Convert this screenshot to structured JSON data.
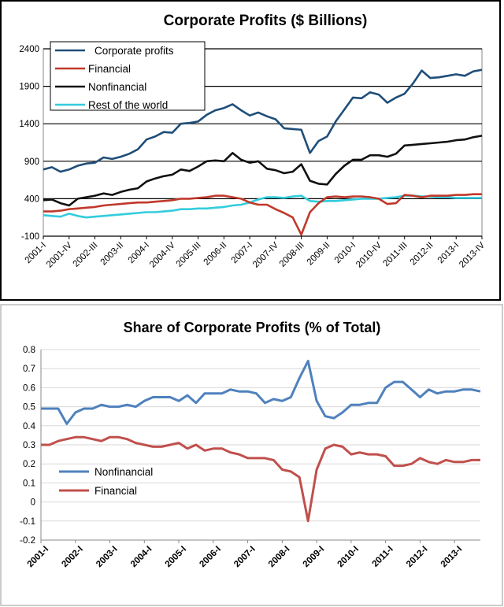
{
  "chart_data": [
    {
      "type": "line",
      "title": "Corporate Profits ($ Billions)",
      "ylim": [
        -100,
        2400
      ],
      "yticks": [
        2400,
        1900,
        1400,
        900,
        400,
        -100
      ],
      "xtick_labels": [
        "2001-I",
        "2001-IV",
        "2002-III",
        "2003-II",
        "2004-I",
        "2004-IV",
        "2005-III",
        "2006-II",
        "2007-I",
        "2007-IV",
        "2008-III",
        "2009-II",
        "2010-I",
        "2010-IV",
        "2011-III",
        "2012-II",
        "2013-I",
        "2013-IV"
      ],
      "legend": "top-left",
      "series": [
        {
          "name": "Corporate profits",
          "color": "#1f4e79",
          "values": [
            790,
            820,
            760,
            790,
            840,
            870,
            880,
            950,
            930,
            960,
            1000,
            1060,
            1190,
            1230,
            1290,
            1280,
            1400,
            1410,
            1430,
            1520,
            1580,
            1610,
            1660,
            1580,
            1510,
            1550,
            1500,
            1460,
            1340,
            1330,
            1320,
            1010,
            1170,
            1230,
            1430,
            1590,
            1750,
            1740,
            1820,
            1790,
            1680,
            1750,
            1800,
            1940,
            2110,
            2010,
            2020,
            2040,
            2060,
            2040,
            2100,
            2120
          ]
        },
        {
          "name": "Financial",
          "color": "#c0392b",
          "values": [
            230,
            230,
            240,
            260,
            270,
            280,
            290,
            310,
            320,
            330,
            340,
            350,
            350,
            360,
            370,
            380,
            400,
            400,
            410,
            420,
            440,
            440,
            420,
            400,
            350,
            320,
            320,
            260,
            210,
            150,
            -80,
            220,
            340,
            420,
            430,
            420,
            430,
            430,
            420,
            400,
            330,
            340,
            450,
            440,
            420,
            440,
            440,
            440,
            450,
            450,
            460,
            460
          ]
        },
        {
          "name": "Nonfinancial",
          "color": "#111111",
          "values": [
            380,
            390,
            340,
            310,
            400,
            420,
            440,
            470,
            450,
            490,
            520,
            540,
            630,
            670,
            700,
            720,
            790,
            770,
            830,
            900,
            910,
            900,
            1010,
            920,
            880,
            900,
            800,
            780,
            740,
            760,
            860,
            640,
            600,
            590,
            730,
            840,
            920,
            920,
            980,
            980,
            960,
            1000,
            1110,
            1120,
            1130,
            1140,
            1150,
            1160,
            1180,
            1190,
            1220,
            1240
          ]
        },
        {
          "name": "Rest of the world",
          "color": "#33ccdd",
          "values": [
            180,
            170,
            160,
            200,
            170,
            150,
            160,
            170,
            180,
            190,
            200,
            210,
            220,
            220,
            230,
            240,
            260,
            260,
            270,
            270,
            280,
            290,
            310,
            320,
            350,
            390,
            420,
            420,
            410,
            430,
            440,
            370,
            360,
            370,
            370,
            380,
            390,
            400,
            400,
            400,
            410,
            420,
            440,
            440,
            430,
            430,
            420,
            420,
            410,
            410,
            410,
            410
          ]
        }
      ]
    },
    {
      "type": "line",
      "title": "Share of Corporate Profits (% of Total)",
      "ylim": [
        -0.2,
        0.8
      ],
      "yticks": [
        "0.8",
        "0.7",
        "0.6",
        "0.5",
        "0.4",
        "0.3",
        "0.2",
        "0.1",
        "0",
        "-0.1",
        "-0.2"
      ],
      "xtick_labels": [
        "2001-I",
        "2002-I",
        "2003-I",
        "2004-I",
        "2005-I",
        "2006-I",
        "2007-I",
        "2008-I",
        "2009-I",
        "2010-I",
        "2011-I",
        "2012-I",
        "2013-I"
      ],
      "legend": "bottom-left",
      "series": [
        {
          "name": "Nonfinancial",
          "color": "#4f81bd",
          "values": [
            0.49,
            0.49,
            0.49,
            0.41,
            0.47,
            0.49,
            0.49,
            0.51,
            0.5,
            0.5,
            0.51,
            0.5,
            0.53,
            0.55,
            0.55,
            0.55,
            0.53,
            0.56,
            0.52,
            0.57,
            0.57,
            0.57,
            0.59,
            0.58,
            0.58,
            0.57,
            0.52,
            0.54,
            0.53,
            0.55,
            0.65,
            0.74,
            0.53,
            0.45,
            0.44,
            0.47,
            0.51,
            0.51,
            0.52,
            0.52,
            0.6,
            0.63,
            0.63,
            0.59,
            0.55,
            0.59,
            0.57,
            0.58,
            0.58,
            0.59,
            0.59,
            0.58
          ]
        },
        {
          "name": "Financial",
          "color": "#c0504d",
          "values": [
            0.3,
            0.3,
            0.32,
            0.33,
            0.34,
            0.34,
            0.33,
            0.32,
            0.34,
            0.34,
            0.33,
            0.31,
            0.3,
            0.29,
            0.29,
            0.3,
            0.31,
            0.28,
            0.3,
            0.27,
            0.28,
            0.28,
            0.26,
            0.25,
            0.23,
            0.23,
            0.23,
            0.22,
            0.17,
            0.16,
            0.13,
            -0.1,
            0.17,
            0.28,
            0.3,
            0.29,
            0.25,
            0.26,
            0.25,
            0.25,
            0.24,
            0.19,
            0.19,
            0.2,
            0.23,
            0.21,
            0.2,
            0.22,
            0.21,
            0.21,
            0.22,
            0.22
          ]
        }
      ]
    }
  ]
}
